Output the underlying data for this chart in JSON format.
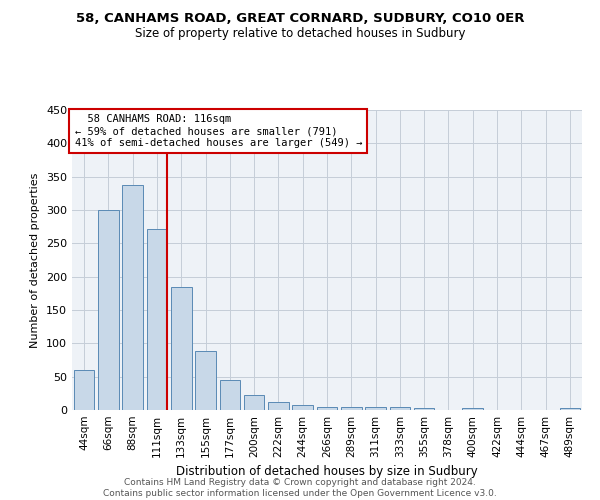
{
  "title1": "58, CANHAMS ROAD, GREAT CORNARD, SUDBURY, CO10 0ER",
  "title2": "Size of property relative to detached houses in Sudbury",
  "xlabel": "Distribution of detached houses by size in Sudbury",
  "ylabel": "Number of detached properties",
  "bar_labels": [
    "44sqm",
    "66sqm",
    "88sqm",
    "111sqm",
    "133sqm",
    "155sqm",
    "177sqm",
    "200sqm",
    "222sqm",
    "244sqm",
    "266sqm",
    "289sqm",
    "311sqm",
    "333sqm",
    "355sqm",
    "378sqm",
    "400sqm",
    "422sqm",
    "444sqm",
    "467sqm",
    "489sqm"
  ],
  "bar_values": [
    60,
    300,
    338,
    272,
    185,
    88,
    45,
    22,
    12,
    7,
    5,
    4,
    4,
    4,
    3,
    0,
    3,
    0,
    0,
    0,
    3
  ],
  "bar_color": "#c8d8e8",
  "bar_edge_color": "#5a8ab5",
  "vline_x": 3.42,
  "property_line_label": "58 CANHAMS ROAD: 116sqm",
  "annotation_line1": "← 59% of detached houses are smaller (791)",
  "annotation_line2": "41% of semi-detached houses are larger (549) →",
  "vline_color": "#cc0000",
  "annotation_box_color": "#cc0000",
  "ylim": [
    0,
    450
  ],
  "yticks": [
    0,
    50,
    100,
    150,
    200,
    250,
    300,
    350,
    400,
    450
  ],
  "footer1": "Contains HM Land Registry data © Crown copyright and database right 2024.",
  "footer2": "Contains public sector information licensed under the Open Government Licence v3.0.",
  "bg_color": "#eef2f7",
  "grid_color": "#c5cdd8"
}
